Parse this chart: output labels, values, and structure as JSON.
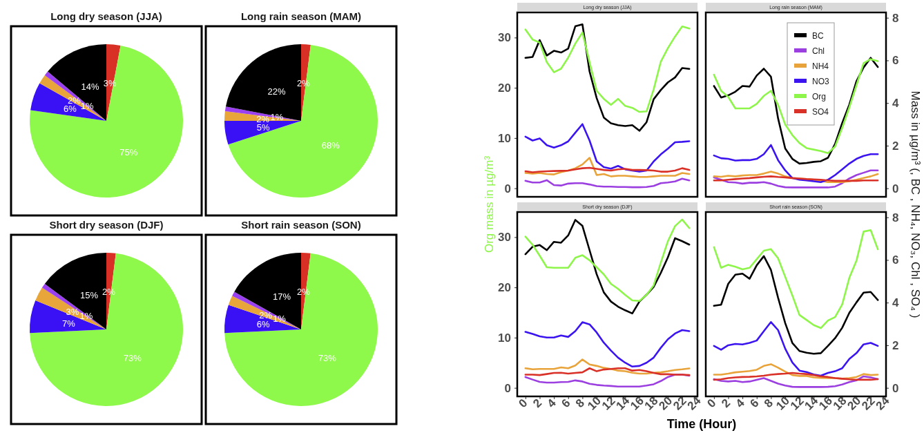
{
  "chart_data": [
    {
      "type": "pie",
      "title": "Long dry season (JJA)",
      "categories": [
        null,
        null,
        null,
        null,
        null,
        null
      ],
      "values": [
        3,
        75,
        6,
        2,
        1,
        14
      ],
      "colors": [
        "#d93025",
        "#8ef94a",
        "#3a10f5",
        "#e8a53a",
        "#9b40f0",
        "#000000"
      ],
      "value_labels": [
        "3%",
        "75%",
        "6%",
        "2%",
        "1%",
        "14%"
      ]
    },
    {
      "type": "pie",
      "title": "Long rain season (MAM)",
      "categories": [
        null,
        null,
        null,
        null,
        null,
        null
      ],
      "values": [
        2,
        68,
        5,
        2,
        1,
        22
      ],
      "colors": [
        "#d93025",
        "#8ef94a",
        "#3a10f5",
        "#e8a53a",
        "#9b40f0",
        "#000000"
      ],
      "value_labels": [
        "2%",
        "68%",
        "5%",
        "2%",
        "1%",
        "22%"
      ]
    },
    {
      "type": "pie",
      "title": "Short dry season (DJF)",
      "categories": [
        null,
        null,
        null,
        null,
        null,
        null
      ],
      "values": [
        2,
        73,
        7,
        3,
        1,
        15
      ],
      "colors": [
        "#d93025",
        "#8ef94a",
        "#3a10f5",
        "#e8a53a",
        "#9b40f0",
        "#000000"
      ],
      "value_labels": [
        "2%",
        "73%",
        "7%",
        "3%",
        "1%",
        "15%"
      ]
    },
    {
      "type": "pie",
      "title": "Short rain season (SON)",
      "categories": [
        null,
        null,
        null,
        null,
        null,
        null
      ],
      "values": [
        2,
        73,
        6,
        2,
        1,
        17
      ],
      "colors": [
        "#d93025",
        "#8ef94a",
        "#3a10f5",
        "#e8a53a",
        "#9b40f0",
        "#000000"
      ],
      "value_labels": [
        "2%",
        "73%",
        "6%",
        "2%",
        "1%",
        "17%"
      ]
    },
    {
      "type": "line",
      "title": "Long dry season (JJA)",
      "ylabel": "Org mass in µg/m³",
      "x": [
        0,
        1,
        2,
        3,
        4,
        5,
        6,
        7,
        8,
        9,
        10,
        11,
        12,
        13,
        14,
        15,
        16,
        17,
        18,
        19,
        20,
        21,
        22,
        23
      ],
      "xlim": [
        -1.15,
        24.15
      ],
      "ylim": [
        -1.7,
        35
      ],
      "yticks": [
        0,
        10,
        20,
        30
      ],
      "y2lim": [
        -0.4,
        8.25
      ],
      "series": [
        {
          "color": "#000000",
          "axis": "y2",
          "values": [
            6.12,
            6.16,
            6.95,
            6.23,
            6.45,
            6.37,
            6.55,
            7.6,
            7.69,
            5.48,
            4.23,
            3.32,
            3.05,
            2.96,
            2.92,
            2.96,
            2.7,
            3.1,
            4.18,
            4.61,
            4.97,
            5.2,
            5.64,
            5.6
          ]
        },
        {
          "color": "#9b3fe0",
          "axis": "y2",
          "values": [
            0.35,
            0.27,
            0.27,
            0.38,
            0.15,
            0.13,
            0.22,
            0.24,
            0.24,
            0.18,
            0.1,
            0.08,
            0.08,
            0.06,
            0.06,
            0.05,
            0.05,
            0.06,
            0.11,
            0.24,
            0.27,
            0.32,
            0.45,
            0.37
          ]
        },
        {
          "color": "#e8a33a",
          "axis": "y2",
          "values": [
            0.72,
            0.69,
            0.72,
            0.67,
            0.65,
            0.76,
            0.83,
            0.94,
            1.12,
            1.43,
            0.62,
            0.67,
            0.56,
            0.59,
            0.59,
            0.56,
            0.53,
            0.53,
            0.56,
            0.59,
            0.59,
            0.59,
            0.72,
            0.67
          ]
        },
        {
          "color": "#3b14f0",
          "axis": "y2",
          "values": [
            2.42,
            2.24,
            2.34,
            2.02,
            1.91,
            2.02,
            2.2,
            2.61,
            3.01,
            2.24,
            1.26,
            0.99,
            0.92,
            1.05,
            0.89,
            0.83,
            0.78,
            0.83,
            1.26,
            1.59,
            1.86,
            2.16,
            2.18,
            2.21
          ]
        },
        {
          "color": "#8ef54a",
          "values": [
            31.6,
            29.6,
            29.0,
            25.1,
            23.1,
            23.8,
            26.0,
            28.8,
            31.0,
            25.1,
            19.4,
            17.8,
            16.6,
            17.8,
            16.4,
            16.0,
            15.2,
            15.3,
            19.7,
            25.2,
            27.9,
            30.2,
            32.2,
            31.8
          ]
        },
        {
          "color": "#d93127",
          "axis": "y2",
          "values": [
            0.8,
            0.75,
            0.78,
            0.8,
            0.81,
            0.82,
            0.83,
            0.89,
            0.94,
            0.96,
            0.91,
            0.86,
            0.83,
            0.89,
            0.91,
            0.86,
            0.86,
            0.85,
            0.83,
            0.78,
            0.78,
            0.83,
            0.94,
            0.86
          ]
        }
      ]
    },
    {
      "type": "line",
      "title": "Long rain season (MAM)",
      "y2label": "Mass in µg/m³ (, BC , NH₄, NO₃, Chl , SO₄ )",
      "legend": "top right",
      "x": [
        0,
        1,
        2,
        3,
        4,
        5,
        6,
        7,
        8,
        9,
        10,
        11,
        12,
        13,
        14,
        15,
        16,
        17,
        18,
        19,
        20,
        21,
        22,
        23
      ],
      "xlim": [
        -1.15,
        24.15
      ],
      "ylim": [
        -1.7,
        35
      ],
      "y2lim": [
        -0.4,
        8.25
      ],
      "y2ticks": [
        0,
        2,
        4,
        6,
        8
      ],
      "series": [
        {
          "name": "BC",
          "color": "#000000",
          "axis": "y2",
          "values": [
            4.8,
            4.26,
            4.36,
            4.53,
            4.8,
            4.77,
            5.29,
            5.61,
            5.23,
            3.28,
            1.87,
            1.38,
            1.16,
            1.19,
            1.24,
            1.27,
            1.43,
            2.08,
            3.06,
            3.93,
            5.02,
            5.67,
            6.12,
            5.69
          ]
        },
        {
          "name": "Chl",
          "color": "#9b3fe0",
          "axis": "y2",
          "values": [
            0.51,
            0.4,
            0.29,
            0.27,
            0.22,
            0.26,
            0.26,
            0.29,
            0.22,
            0.11,
            0.05,
            0.04,
            0.04,
            0.04,
            0.04,
            0.04,
            0.04,
            0.08,
            0.24,
            0.46,
            0.62,
            0.73,
            0.84,
            0.84
          ]
        },
        {
          "name": "NH4",
          "color": "#e8a33a",
          "axis": "y2",
          "values": [
            0.56,
            0.54,
            0.59,
            0.56,
            0.6,
            0.62,
            0.62,
            0.69,
            0.78,
            0.69,
            0.56,
            0.48,
            0.46,
            0.43,
            0.4,
            0.35,
            0.29,
            0.29,
            0.29,
            0.33,
            0.4,
            0.48,
            0.56,
            0.67
          ]
        },
        {
          "name": "NO3",
          "color": "#3b14f0",
          "axis": "y2",
          "values": [
            1.54,
            1.41,
            1.38,
            1.3,
            1.32,
            1.32,
            1.38,
            1.6,
            2.03,
            1.32,
            0.84,
            0.48,
            0.4,
            0.37,
            0.33,
            0.29,
            0.4,
            0.62,
            0.89,
            1.16,
            1.38,
            1.52,
            1.6,
            1.6
          ]
        },
        {
          "name": "Org",
          "color": "#8ef54a",
          "values": [
            22.6,
            19.4,
            18.2,
            15.9,
            15.9,
            15.9,
            16.8,
            18.4,
            19.4,
            16.6,
            12.7,
            10.6,
            9.0,
            8.0,
            7.7,
            7.4,
            7.0,
            8.3,
            12.0,
            16.1,
            20.5,
            24.9,
            25.7,
            25.3
          ]
        },
        {
          "name": "SO4",
          "color": "#d93127",
          "axis": "y2",
          "values": [
            0.37,
            0.37,
            0.4,
            0.43,
            0.46,
            0.48,
            0.51,
            0.54,
            0.56,
            0.53,
            0.51,
            0.48,
            0.46,
            0.43,
            0.42,
            0.4,
            0.37,
            0.35,
            0.35,
            0.35,
            0.35,
            0.37,
            0.37,
            0.37
          ]
        }
      ]
    },
    {
      "type": "line",
      "title": "Short dry season (DJF)",
      "xlabel": "Time (Hour)",
      "x": [
        0,
        1,
        2,
        3,
        4,
        5,
        6,
        7,
        8,
        9,
        10,
        11,
        12,
        13,
        14,
        15,
        16,
        17,
        18,
        19,
        20,
        21,
        22,
        23
      ],
      "xlim": [
        -1.15,
        24.15
      ],
      "xticks": [
        0,
        2,
        4,
        6,
        8,
        10,
        12,
        14,
        16,
        18,
        20,
        22,
        24
      ],
      "ylim": [
        -1.7,
        35
      ],
      "yticks": [
        0,
        10,
        20,
        30
      ],
      "y2lim": [
        -0.4,
        8.25
      ],
      "series": [
        {
          "color": "#000000",
          "axis": "y2",
          "values": [
            6.27,
            6.62,
            6.7,
            6.46,
            6.85,
            6.81,
            7.15,
            7.88,
            7.6,
            6.46,
            5.33,
            4.48,
            4.05,
            3.81,
            3.64,
            3.49,
            4.05,
            4.37,
            4.74,
            5.39,
            6.13,
            7.02,
            6.88,
            6.72
          ]
        },
        {
          "color": "#9b3fe0",
          "axis": "y2",
          "values": [
            0.51,
            0.39,
            0.28,
            0.25,
            0.25,
            0.27,
            0.28,
            0.35,
            0.3,
            0.19,
            0.14,
            0.11,
            0.09,
            0.06,
            0.06,
            0.06,
            0.06,
            0.11,
            0.17,
            0.32,
            0.51,
            0.62,
            0.62,
            0.57
          ]
        },
        {
          "color": "#e8a33a",
          "axis": "y2",
          "values": [
            0.92,
            0.87,
            0.89,
            0.89,
            0.89,
            0.96,
            0.92,
            1.05,
            1.33,
            1.1,
            1.03,
            0.94,
            0.89,
            0.81,
            0.78,
            0.71,
            0.67,
            0.67,
            0.71,
            0.73,
            0.78,
            0.84,
            0.87,
            0.91
          ]
        },
        {
          "color": "#3b14f0",
          "axis": "y2",
          "values": [
            2.63,
            2.53,
            2.42,
            2.36,
            2.36,
            2.46,
            2.39,
            2.66,
            3.08,
            2.98,
            2.6,
            2.12,
            1.75,
            1.42,
            1.18,
            1.0,
            1.03,
            1.18,
            1.42,
            1.88,
            2.28,
            2.55,
            2.71,
            2.66
          ]
        },
        {
          "color": "#8ef54a",
          "values": [
            30.1,
            28.5,
            26.3,
            24.0,
            23.9,
            23.9,
            23.9,
            25.9,
            26.4,
            25.4,
            24.0,
            22.6,
            20.7,
            19.7,
            18.5,
            17.4,
            17.3,
            18.5,
            20.4,
            24.9,
            29.2,
            32.2,
            33.5,
            31.8
          ]
        },
        {
          "color": "#d93127",
          "axis": "y2",
          "values": [
            0.62,
            0.62,
            0.6,
            0.65,
            0.7,
            0.71,
            0.67,
            0.7,
            0.73,
            0.92,
            0.78,
            0.86,
            0.89,
            0.92,
            0.92,
            0.81,
            0.84,
            0.78,
            0.7,
            0.64,
            0.64,
            0.62,
            0.62,
            0.6
          ]
        }
      ]
    },
    {
      "type": "line",
      "title": "Short rain season (SON)",
      "x": [
        0,
        1,
        2,
        3,
        4,
        5,
        6,
        7,
        8,
        9,
        10,
        11,
        12,
        13,
        14,
        15,
        16,
        17,
        18,
        19,
        20,
        21,
        22,
        23
      ],
      "xlim": [
        -1.15,
        24.15
      ],
      "xticks": [
        0,
        2,
        4,
        6,
        8,
        10,
        12,
        14,
        16,
        18,
        20,
        22,
        24
      ],
      "ylim": [
        -1.7,
        35
      ],
      "y2lim": [
        -0.4,
        8.25
      ],
      "y2ticks": [
        0,
        2,
        4,
        6,
        8
      ],
      "series": [
        {
          "color": "#000000",
          "axis": "y2",
          "values": [
            3.85,
            3.9,
            4.88,
            5.31,
            5.36,
            5.12,
            5.75,
            6.18,
            5.53,
            4.23,
            3.04,
            2.11,
            1.73,
            1.65,
            1.6,
            1.63,
            1.97,
            2.33,
            2.82,
            3.52,
            4.01,
            4.47,
            4.5,
            4.12
          ]
        },
        {
          "color": "#9b3fe0",
          "axis": "y2",
          "values": [
            0.41,
            0.33,
            0.3,
            0.33,
            0.27,
            0.3,
            0.38,
            0.46,
            0.33,
            0.2,
            0.11,
            0.05,
            0.04,
            0.04,
            0.04,
            0.04,
            0.05,
            0.08,
            0.16,
            0.27,
            0.35,
            0.54,
            0.49,
            0.41
          ]
        },
        {
          "color": "#e8a33a",
          "axis": "y2",
          "values": [
            0.62,
            0.62,
            0.67,
            0.73,
            0.76,
            0.79,
            0.85,
            1.03,
            1.11,
            0.95,
            0.76,
            0.6,
            0.56,
            0.56,
            0.49,
            0.47,
            0.46,
            0.46,
            0.43,
            0.46,
            0.51,
            0.65,
            0.6,
            0.62
          ]
        },
        {
          "color": "#3b14f0",
          "axis": "y2",
          "values": [
            1.97,
            1.79,
            2.0,
            2.06,
            2.04,
            2.11,
            2.22,
            2.66,
            3.09,
            2.71,
            1.84,
            1.19,
            0.81,
            0.74,
            0.63,
            0.57,
            0.7,
            0.78,
            0.92,
            1.36,
            1.63,
            2.04,
            2.11,
            1.97
          ]
        },
        {
          "color": "#8ef54a",
          "values": [
            28.0,
            23.9,
            24.5,
            24.1,
            23.6,
            23.9,
            25.6,
            27.3,
            27.6,
            25.8,
            22.1,
            18.4,
            14.5,
            13.5,
            12.5,
            11.9,
            13.4,
            14.1,
            16.6,
            21.9,
            25.3,
            31.1,
            31.4,
            27.6
          ]
        },
        {
          "color": "#d93127",
          "axis": "y2",
          "values": [
            0.38,
            0.4,
            0.46,
            0.49,
            0.51,
            0.52,
            0.54,
            0.57,
            0.62,
            0.65,
            0.67,
            0.7,
            0.67,
            0.65,
            0.6,
            0.54,
            0.51,
            0.46,
            0.43,
            0.4,
            0.38,
            0.38,
            0.38,
            0.41
          ]
        }
      ]
    }
  ]
}
